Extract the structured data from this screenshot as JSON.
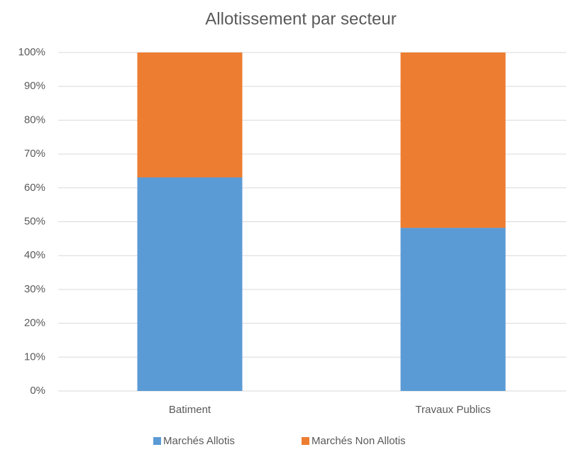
{
  "chart_data": {
    "type": "stacked_bar",
    "title": "Allotissement par secteur",
    "categories": [
      "Batiment",
      "Travaux Publics"
    ],
    "series": [
      {
        "name": "Marchés Allotis",
        "color": "#5b9bd5",
        "values": [
          63.1,
          48.2
        ]
      },
      {
        "name": "Marchés Non Allotis",
        "color": "#ed7d31",
        "values": [
          36.9,
          51.8
        ]
      }
    ],
    "ylim": [
      0,
      100
    ],
    "yticks": [
      {
        "value": 0,
        "label": "0%"
      },
      {
        "value": 10,
        "label": "10%"
      },
      {
        "value": 20,
        "label": "20%"
      },
      {
        "value": 30,
        "label": "30%"
      },
      {
        "value": 40,
        "label": "40%"
      },
      {
        "value": 50,
        "label": "50%"
      },
      {
        "value": 60,
        "label": "60%"
      },
      {
        "value": 70,
        "label": "70%"
      },
      {
        "value": 80,
        "label": "80%"
      },
      {
        "value": 90,
        "label": "90%"
      },
      {
        "value": 100,
        "label": "100%"
      }
    ],
    "grid": true,
    "legend": "bottom"
  }
}
